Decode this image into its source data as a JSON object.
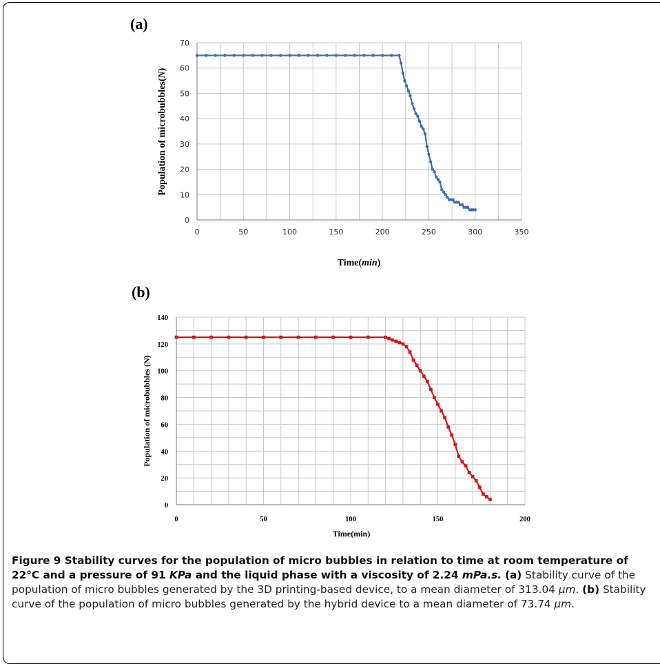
{
  "chart_data": [
    {
      "panel": "(a)",
      "type": "scatter",
      "xlabel_main": "Time(",
      "xlabel_italic": "min",
      "xlabel_end": ")",
      "ylabel_main": "Population of microbubbles(",
      "ylabel_italic": "N",
      "ylabel_end": ")",
      "xlim": [
        0,
        350
      ],
      "ylim": [
        0,
        70
      ],
      "xticks": [
        0,
        50,
        100,
        150,
        200,
        250,
        300,
        350
      ],
      "yticks": [
        0,
        10,
        20,
        30,
        40,
        50,
        60,
        70
      ],
      "grid": true,
      "color": "#3a6fb9",
      "series": [
        {
          "x": [
            0,
            10,
            20,
            30,
            40,
            50,
            60,
            70,
            80,
            90,
            100,
            110,
            120,
            130,
            140,
            150,
            160,
            170,
            180,
            190,
            200,
            210,
            218,
            220,
            222,
            224,
            226,
            228,
            230,
            232,
            234,
            236,
            238,
            240,
            242,
            244,
            246,
            248,
            250,
            252,
            254,
            256,
            258,
            260,
            262,
            264,
            266,
            268,
            270,
            272,
            274,
            276,
            278,
            280,
            282,
            284,
            286,
            288,
            290,
            292,
            294,
            296,
            298,
            300
          ],
          "y": [
            65,
            65,
            65,
            65,
            65,
            65,
            65,
            65,
            65,
            65,
            65,
            65,
            65,
            65,
            65,
            65,
            65,
            65,
            65,
            65,
            65,
            65,
            65,
            62,
            58,
            55,
            53,
            51,
            49,
            46,
            44,
            42,
            41,
            39,
            37,
            36,
            34,
            29,
            26,
            23,
            20,
            19,
            17,
            16,
            15,
            12,
            11,
            10,
            9,
            8,
            8,
            8,
            7,
            7,
            7,
            6,
            6,
            5,
            5,
            5,
            4,
            4,
            4,
            4
          ]
        }
      ]
    },
    {
      "panel": "(b)",
      "type": "line",
      "xlabel": "Time(min)",
      "ylabel": "Population of microbubbles (N)",
      "xlim": [
        0,
        200
      ],
      "ylim": [
        0,
        140
      ],
      "xticks": [
        0,
        50,
        100,
        150,
        200
      ],
      "yticks": [
        0,
        20,
        40,
        60,
        80,
        100,
        120,
        140
      ],
      "grid": true,
      "color": "#d01818",
      "series": [
        {
          "x": [
            0,
            10,
            20,
            30,
            40,
            50,
            60,
            70,
            80,
            90,
            100,
            110,
            120,
            122,
            124,
            126,
            128,
            130,
            132,
            134,
            136,
            138,
            140,
            142,
            144,
            146,
            148,
            150,
            152,
            154,
            156,
            158,
            160,
            162,
            164,
            166,
            168,
            170,
            172,
            174,
            176,
            178,
            180
          ],
          "y": [
            125,
            125,
            125,
            125,
            125,
            125,
            125,
            125,
            125,
            125,
            125,
            125,
            125,
            124,
            123,
            122,
            121,
            120,
            118,
            114,
            108,
            104,
            100,
            96,
            92,
            86,
            80,
            75,
            70,
            65,
            58,
            52,
            45,
            36,
            32,
            29,
            24,
            21,
            18,
            13,
            8,
            6,
            4
          ]
        }
      ]
    }
  ],
  "caption": {
    "title": "Figure 9 Stability curves for the population of micro bubbles in relation to time at room temperature of 22°C and a pressure of 91 ",
    "title_kpa": "KPa",
    "title_mid": " and the liquid phase with a viscosity of 2.24 ",
    "title_mpas": "mPa.s.",
    "a_label": "(a)",
    "a_text": " Stability curve of the population of micro bubbles generated by the 3D printing-based device, to a mean diameter of 313.04 ",
    "a_unit": "μm",
    "a_end": ". ",
    "b_label": "(b)",
    "b_text": " Stability curve of the population of micro bubbles generated by the hybrid device to a mean diameter of 73.74 ",
    "b_unit": "μm",
    "b_end": "."
  }
}
